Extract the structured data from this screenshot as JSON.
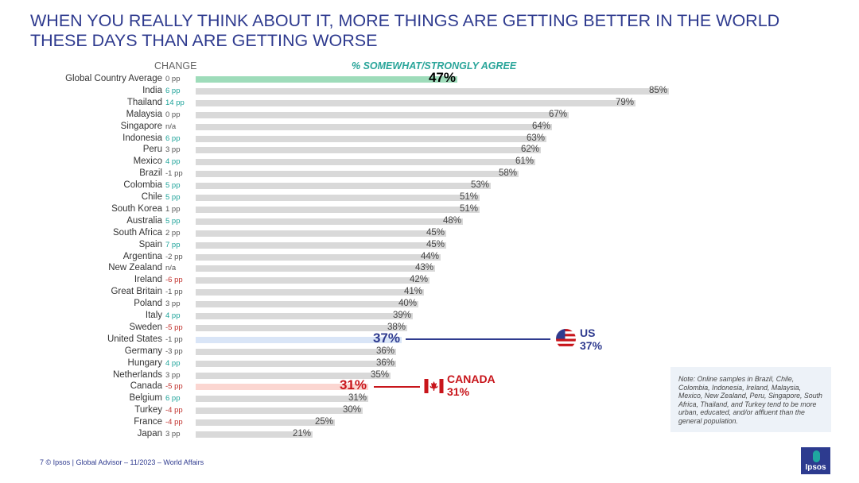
{
  "title": "WHEN YOU REALLY THINK ABOUT IT, MORE THINGS ARE GETTING BETTER IN THE WORLD THESE DAYS THAN ARE GETTING WORSE",
  "change_header": "CHANGE",
  "agree_header": "% SOMEWHAT/STRONGLY AGREE",
  "chart_data": {
    "type": "bar",
    "orientation": "horizontal",
    "title": "% SOMEWHAT/STRONGLY AGREE",
    "xlim": [
      0,
      100
    ],
    "rows": [
      {
        "country": "Global Country Average",
        "change": "0 pp",
        "tone": "neu",
        "value": 47,
        "highlight": "global"
      },
      {
        "country": "India",
        "change": "6 pp",
        "tone": "pos",
        "value": 85
      },
      {
        "country": "Thailand",
        "change": "14 pp",
        "tone": "pos",
        "value": 79
      },
      {
        "country": "Malaysia",
        "change": "0 pp",
        "tone": "neu",
        "value": 67
      },
      {
        "country": "Singapore",
        "change": "n/a",
        "tone": "neu",
        "value": 64
      },
      {
        "country": "Indonesia",
        "change": "6 pp",
        "tone": "pos",
        "value": 63
      },
      {
        "country": "Peru",
        "change": "3 pp",
        "tone": "neu",
        "value": 62
      },
      {
        "country": "Mexico",
        "change": "4 pp",
        "tone": "pos",
        "value": 61
      },
      {
        "country": "Brazil",
        "change": "-1 pp",
        "tone": "neu",
        "value": 58
      },
      {
        "country": "Colombia",
        "change": "5 pp",
        "tone": "pos",
        "value": 53
      },
      {
        "country": "Chile",
        "change": "5 pp",
        "tone": "pos",
        "value": 51
      },
      {
        "country": "South Korea",
        "change": "1 pp",
        "tone": "neu",
        "value": 51
      },
      {
        "country": "Australia",
        "change": "5 pp",
        "tone": "pos",
        "value": 48
      },
      {
        "country": "South Africa",
        "change": "2 pp",
        "tone": "neu",
        "value": 45
      },
      {
        "country": "Spain",
        "change": "7 pp",
        "tone": "pos",
        "value": 45
      },
      {
        "country": "Argentina",
        "change": "-2 pp",
        "tone": "neu",
        "value": 44
      },
      {
        "country": "New Zealand",
        "change": "n/a",
        "tone": "neu",
        "value": 43
      },
      {
        "country": "Ireland",
        "change": "-6 pp",
        "tone": "neg",
        "value": 42
      },
      {
        "country": "Great Britain",
        "change": "-1 pp",
        "tone": "neu",
        "value": 41
      },
      {
        "country": "Poland",
        "change": "3 pp",
        "tone": "neu",
        "value": 40
      },
      {
        "country": "Italy",
        "change": "4 pp",
        "tone": "pos",
        "value": 39
      },
      {
        "country": "Sweden",
        "change": "-5 pp",
        "tone": "neg",
        "value": 38
      },
      {
        "country": "United States",
        "change": "-1 pp",
        "tone": "neu",
        "value": 37,
        "highlight": "us"
      },
      {
        "country": "Germany",
        "change": "-3 pp",
        "tone": "neu",
        "value": 36
      },
      {
        "country": "Hungary",
        "change": "4 pp",
        "tone": "pos",
        "value": 36
      },
      {
        "country": "Netherlands",
        "change": "3 pp",
        "tone": "neu",
        "value": 35
      },
      {
        "country": "Canada",
        "change": "-5 pp",
        "tone": "neg",
        "value": 31,
        "highlight": "canada"
      },
      {
        "country": "Belgium",
        "change": "6 pp",
        "tone": "pos",
        "value": 31
      },
      {
        "country": "Turkey",
        "change": "-4 pp",
        "tone": "neg",
        "value": 30
      },
      {
        "country": "France",
        "change": "-4 pp",
        "tone": "neg",
        "value": 25
      },
      {
        "country": "Japan",
        "change": "3 pp",
        "tone": "neu",
        "value": 21
      }
    ]
  },
  "colors": {
    "bar": "#d9d9d9",
    "global": "#9edcba",
    "us": "#d9e5f7",
    "canada": "#fbd6d1",
    "us_text": "#2f3b8f",
    "canada_text": "#c8151b"
  },
  "callouts": {
    "us": {
      "label": "US",
      "value": "37%"
    },
    "canada": {
      "label": "CANADA",
      "value": "31%"
    }
  },
  "note": "Note: Online samples in Brazil, Chile, Colombia, Indonesia, Ireland, Malaysia, Mexico, New Zealand, Peru, Singapore, South Africa, Thailand, and Turkey tend to be more urban, educated, and/or affluent than the general population.",
  "footer": "7   © Ipsos | Global Advisor – 11/2023 – World Affairs",
  "logo": "Ipsos"
}
